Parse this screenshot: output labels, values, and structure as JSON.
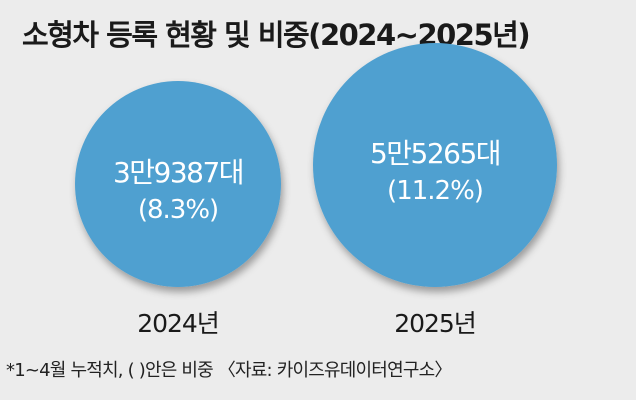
{
  "chart_data": {
    "type": "bubble",
    "title": "소형차 등록 현황 및 비중(2024~2025년)",
    "categories": [
      "2024년",
      "2025년"
    ],
    "series": [
      {
        "values": [
          39387,
          55265
        ],
        "value_labels": [
          "3만9387대",
          "5만5265대"
        ],
        "share_percent": [
          8.3,
          11.2
        ],
        "share_labels": [
          "(8.3%)",
          "(11.2%)"
        ]
      }
    ],
    "bubble_color": "#4fa0d0",
    "label_color": "#ffffff"
  },
  "footnote": "*1~4월 누적치, (  )안은 비중 〈자료: 카이즈유데이터연구소〉"
}
